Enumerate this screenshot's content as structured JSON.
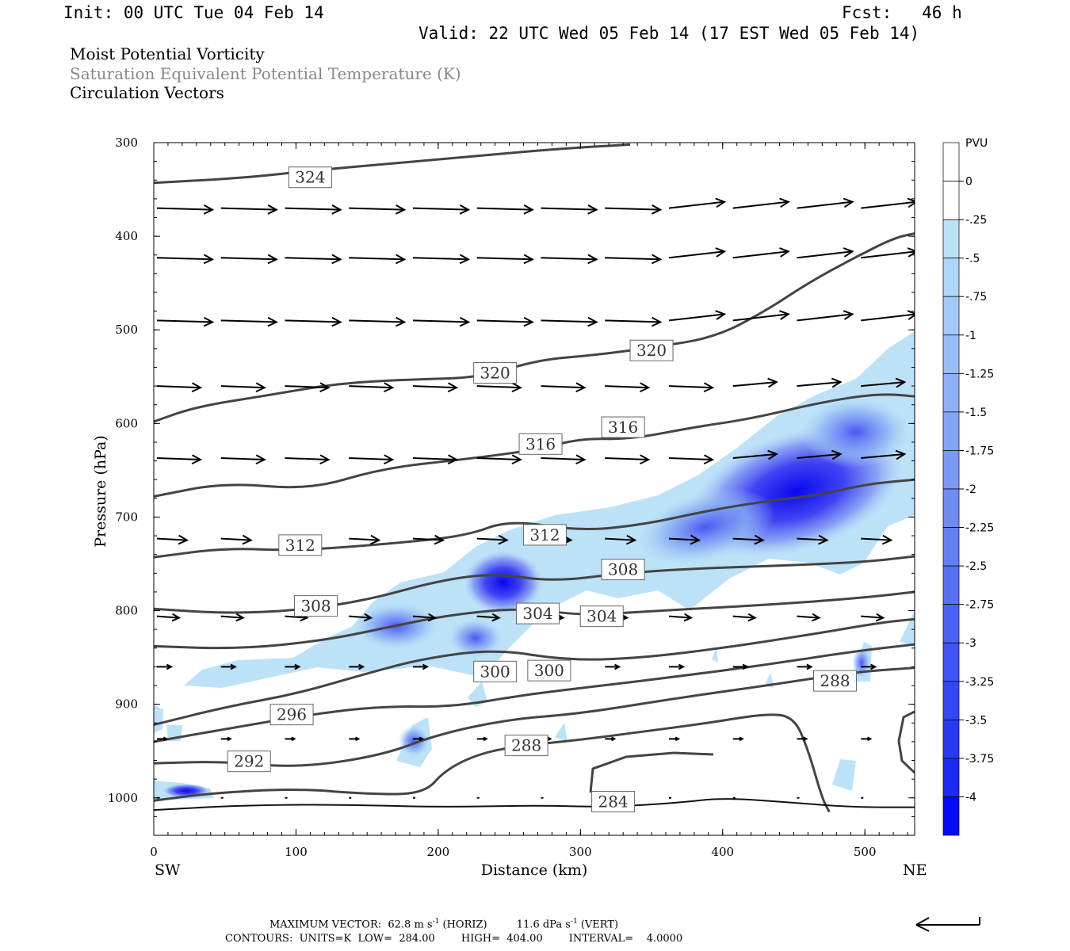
{
  "header": {
    "init": "Init: 00 UTC Tue 04 Feb 14",
    "fcst": "Fcst:   46 h",
    "valid": "Valid: 22 UTC Wed 05 Feb 14 (17 EST Wed 05 Feb 14)"
  },
  "titles": {
    "line1": "Moist Potential Vorticity",
    "line2": "Saturation Equivalent Potential Temperature (K)",
    "line3": "Circulation Vectors"
  },
  "colors": {
    "line1": "#000000",
    "line2": "#888888",
    "line3": "#000000",
    "contour": "#444444",
    "shade_light": "#bde2f8",
    "shade_dark": "#0a0af0"
  },
  "chart_data": {
    "type": "cross-section",
    "xlabel": "Distance (km)",
    "ylabel": "Pressure (hPa)",
    "xlim": [
      0,
      535
    ],
    "ylim": [
      1040,
      300
    ],
    "x_ticks": [
      "0",
      "100",
      "200",
      "300",
      "400",
      "500"
    ],
    "y_ticks": [
      "300",
      "400",
      "500",
      "600",
      "700",
      "800",
      "900",
      "1000"
    ],
    "x_end_labels": {
      "left": "SW",
      "right": "NE"
    },
    "colorbar": {
      "title": "PVU",
      "labels": [
        "0",
        "-.25",
        "-.5",
        "-.75",
        "-1",
        "-1.25",
        "-1.5",
        "-1.75",
        "-2",
        "-2.25",
        "-2.5",
        "-2.75",
        "-3",
        "-3.25",
        "-3.5",
        "-3.75",
        "-4"
      ]
    },
    "contour_labels": [
      {
        "text": "324",
        "x": 110,
        "p": 337
      },
      {
        "text": "320",
        "x": 240,
        "p": 546
      },
      {
        "text": "320",
        "x": 350,
        "p": 522
      },
      {
        "text": "316",
        "x": 272,
        "p": 622
      },
      {
        "text": "316",
        "x": 330,
        "p": 604
      },
      {
        "text": "312",
        "x": 103,
        "p": 730
      },
      {
        "text": "312",
        "x": 275,
        "p": 719
      },
      {
        "text": "308",
        "x": 330,
        "p": 756
      },
      {
        "text": "308",
        "x": 114,
        "p": 795
      },
      {
        "text": "304",
        "x": 270,
        "p": 803
      },
      {
        "text": "304",
        "x": 315,
        "p": 806
      },
      {
        "text": "300",
        "x": 240,
        "p": 865
      },
      {
        "text": "300",
        "x": 278,
        "p": 864
      },
      {
        "text": "296",
        "x": 97,
        "p": 911
      },
      {
        "text": "292",
        "x": 67,
        "p": 961
      },
      {
        "text": "288",
        "x": 262,
        "p": 944
      },
      {
        "text": "288",
        "x": 479,
        "p": 875
      },
      {
        "text": "284",
        "x": 323,
        "p": 1004
      }
    ],
    "contours": [
      {
        "level": 324,
        "points": [
          [
            0,
            343
          ],
          [
            60,
            338
          ],
          [
            110,
            330
          ],
          [
            200,
            318
          ],
          [
            280,
            307
          ],
          [
            335,
            302
          ]
        ]
      },
      {
        "level": 320,
        "points": [
          [
            0,
            598
          ],
          [
            30,
            582
          ],
          [
            80,
            570
          ],
          [
            130,
            557
          ],
          [
            180,
            553
          ],
          [
            230,
            551
          ],
          [
            270,
            532
          ],
          [
            310,
            527
          ],
          [
            350,
            519
          ],
          [
            395,
            508
          ],
          [
            430,
            480
          ],
          [
            460,
            450
          ],
          [
            490,
            425
          ],
          [
            520,
            402
          ],
          [
            535,
            397
          ]
        ]
      },
      {
        "level": 316,
        "points": [
          [
            0,
            678
          ],
          [
            50,
            663
          ],
          [
            110,
            671
          ],
          [
            160,
            648
          ],
          [
            220,
            638
          ],
          [
            270,
            628
          ],
          [
            300,
            616
          ],
          [
            335,
            617
          ],
          [
            380,
            604
          ],
          [
            420,
            595
          ],
          [
            470,
            577
          ],
          [
            510,
            568
          ],
          [
            535,
            571
          ]
        ]
      },
      {
        "level": 312,
        "points": [
          [
            0,
            743
          ],
          [
            50,
            733
          ],
          [
            100,
            736
          ],
          [
            170,
            728
          ],
          [
            220,
            720
          ],
          [
            250,
            703
          ],
          [
            300,
            715
          ],
          [
            345,
            708
          ],
          [
            390,
            693
          ],
          [
            430,
            683
          ],
          [
            470,
            676
          ],
          [
            500,
            665
          ],
          [
            535,
            660
          ]
        ]
      },
      {
        "level": 308,
        "points": [
          [
            0,
            798
          ],
          [
            50,
            803
          ],
          [
            100,
            800
          ],
          [
            150,
            789
          ],
          [
            200,
            768
          ],
          [
            240,
            760
          ],
          [
            280,
            769
          ],
          [
            330,
            760
          ],
          [
            380,
            755
          ],
          [
            440,
            752
          ],
          [
            500,
            748
          ],
          [
            535,
            742
          ]
        ]
      },
      {
        "level": 304,
        "points": [
          [
            0,
            838
          ],
          [
            60,
            841
          ],
          [
            120,
            832
          ],
          [
            170,
            816
          ],
          [
            210,
            804
          ],
          [
            260,
            797
          ],
          [
            300,
            805
          ],
          [
            335,
            802
          ],
          [
            380,
            798
          ],
          [
            440,
            793
          ],
          [
            500,
            786
          ],
          [
            535,
            780
          ]
        ]
      },
      {
        "level": 300,
        "points": [
          [
            0,
            922
          ],
          [
            50,
            903
          ],
          [
            100,
            889
          ],
          [
            150,
            867
          ],
          [
            190,
            851
          ],
          [
            240,
            841
          ],
          [
            290,
            853
          ],
          [
            340,
            851
          ],
          [
            400,
            840
          ],
          [
            460,
            826
          ],
          [
            510,
            813
          ],
          [
            535,
            809
          ]
        ]
      },
      {
        "level": 296,
        "points": [
          [
            0,
            940
          ],
          [
            60,
            924
          ],
          [
            110,
            911
          ],
          [
            160,
            902
          ],
          [
            210,
            903
          ],
          [
            260,
            890
          ],
          [
            310,
            881
          ],
          [
            370,
            870
          ],
          [
            430,
            858
          ],
          [
            490,
            844
          ],
          [
            535,
            836
          ]
        ]
      },
      {
        "level": 292,
        "points": [
          [
            0,
            963
          ],
          [
            50,
            961
          ],
          [
            100,
            968
          ],
          [
            160,
            955
          ],
          [
            200,
            932
          ],
          [
            250,
            916
          ],
          [
            300,
            910
          ],
          [
            370,
            893
          ],
          [
            440,
            878
          ],
          [
            490,
            866
          ],
          [
            535,
            861
          ]
        ]
      },
      {
        "level": 288,
        "points": [
          [
            0,
            1003
          ],
          [
            40,
            995
          ],
          [
            100,
            990
          ],
          [
            150,
            996
          ],
          [
            190,
            996
          ],
          [
            205,
            970
          ],
          [
            230,
            952
          ],
          [
            260,
            944
          ],
          [
            300,
            938
          ],
          [
            340,
            930
          ],
          [
            390,
            920
          ],
          [
            430,
            910
          ],
          [
            450,
            913
          ],
          [
            460,
            948
          ],
          [
            470,
            1001
          ],
          [
            475,
            1015
          ]
        ]
      },
      {
        "level": 284,
        "points": [
          [
            0,
            1013
          ],
          [
            60,
            1008
          ],
          [
            130,
            1007
          ],
          [
            200,
            1010
          ],
          [
            270,
            1008
          ],
          [
            320,
            1010
          ],
          [
            370,
            1005
          ],
          [
            400,
            1000
          ],
          [
            440,
            1004
          ],
          [
            490,
            1010
          ],
          [
            535,
            1010
          ]
        ]
      }
    ],
    "vector_levels_hpa": [
      370,
      423,
      490,
      560,
      637,
      723,
      806,
      860,
      937,
      1000
    ],
    "vector_x_km": [
      0,
      45,
      90,
      135,
      180,
      225,
      270,
      315,
      360,
      405,
      450,
      495,
      535
    ],
    "max_vector": "MAXIMUM VECTOR:  62.8 m s-1 (HORIZ)         11.6 dPa s-1 (VERT)",
    "contours_info": "CONTOURS:  UNITS=K  LOW=  284.00        HIGH=  404.00        INTERVAL=    4.0000"
  },
  "footer": {
    "max_vector_a": "MAXIMUM VECTOR:  62.8 m s",
    "max_vector_sup1": "-1",
    "max_vector_b": " (HORIZ)         11.6 dPa s",
    "max_vector_sup2": "-1",
    "max_vector_c": " (VERT)",
    "contours_line": "CONTOURS:  UNITS=K  LOW=  284.00        HIGH=  404.00        INTERVAL=    4.0000"
  }
}
